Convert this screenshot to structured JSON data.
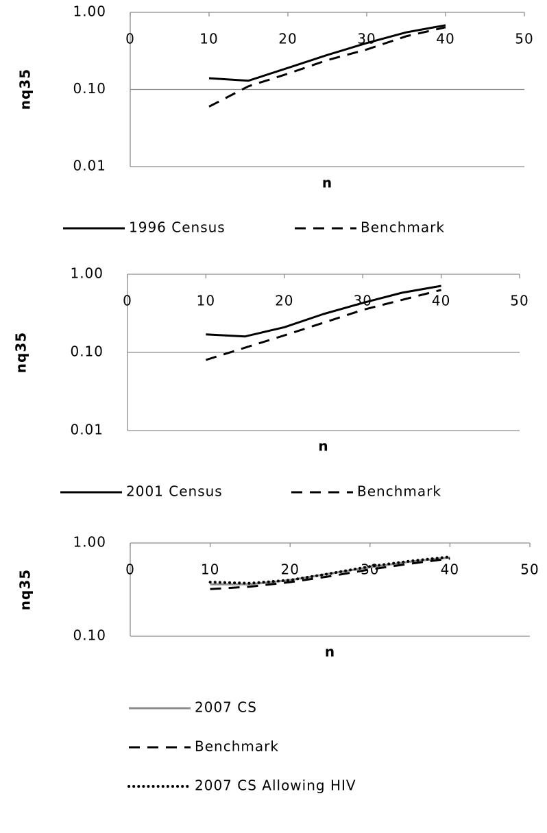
{
  "chart_data": [
    {
      "type": "line",
      "x_label": "n",
      "y_label": "nq35",
      "log_y": true,
      "grid": true,
      "legend": "bottom",
      "x": [
        10,
        15,
        20,
        25,
        30,
        35,
        40
      ],
      "xlim": [
        0,
        50
      ],
      "xticks": [
        0,
        10,
        20,
        30,
        40,
        50
      ],
      "ylim": [
        0.01,
        1
      ],
      "yticks": [
        {
          "value": 0.01,
          "label": "0.01"
        },
        {
          "value": 0.1,
          "label": "0.10"
        },
        {
          "value": 1,
          "label": "1.00"
        }
      ],
      "series": [
        {
          "name": "1996 Census",
          "color": "#000000",
          "style": "solid",
          "values": [
            0.14,
            0.13,
            0.19,
            0.28,
            0.4,
            0.55,
            0.68
          ]
        },
        {
          "name": "Benchmark",
          "color": "#000000",
          "style": "dashed",
          "values": [
            0.06,
            0.11,
            0.16,
            0.24,
            0.33,
            0.49,
            0.64
          ]
        }
      ]
    },
    {
      "type": "line",
      "x_label": "n",
      "y_label": "nq35",
      "log_y": true,
      "grid": true,
      "legend": "bottom",
      "x": [
        10,
        15,
        20,
        25,
        30,
        35,
        40
      ],
      "xlim": [
        0,
        50
      ],
      "xticks": [
        0,
        10,
        20,
        30,
        40,
        50
      ],
      "ylim": [
        0.01,
        1
      ],
      "yticks": [
        {
          "value": 0.01,
          "label": "0.01"
        },
        {
          "value": 0.1,
          "label": "0.10"
        },
        {
          "value": 1,
          "label": "1.00"
        }
      ],
      "series": [
        {
          "name": "2001 Census",
          "color": "#000000",
          "style": "solid",
          "values": [
            0.17,
            0.16,
            0.21,
            0.31,
            0.43,
            0.58,
            0.71
          ]
        },
        {
          "name": "Benchmark",
          "color": "#000000",
          "style": "dashed",
          "values": [
            0.08,
            0.115,
            0.165,
            0.24,
            0.35,
            0.47,
            0.63
          ]
        }
      ]
    },
    {
      "type": "line",
      "x_label": "n",
      "y_label": "nq35",
      "log_y": true,
      "grid": true,
      "legend": "bottom",
      "x": [
        10,
        15,
        20,
        25,
        30,
        35,
        40
      ],
      "xlim": [
        0,
        50
      ],
      "xticks": [
        0,
        10,
        20,
        30,
        40,
        50
      ],
      "ylim": [
        0.1,
        1
      ],
      "yticks": [
        {
          "value": 0.1,
          "label": "0.10"
        },
        {
          "value": 1,
          "label": "1.00"
        }
      ],
      "series": [
        {
          "name": "2007 CS",
          "color": "#8c8c8c",
          "style": "solid",
          "values": [
            0.36,
            0.36,
            0.4,
            0.47,
            0.55,
            0.63,
            0.7
          ]
        },
        {
          "name": "Benchmark",
          "color": "#000000",
          "style": "dashed",
          "values": [
            0.32,
            0.34,
            0.38,
            0.44,
            0.52,
            0.6,
            0.68
          ]
        },
        {
          "name": "2007 CS Allowing HIV",
          "color": "#000000",
          "style": "dotted",
          "values": [
            0.38,
            0.37,
            0.4,
            0.47,
            0.56,
            0.64,
            0.71
          ]
        }
      ]
    }
  ]
}
